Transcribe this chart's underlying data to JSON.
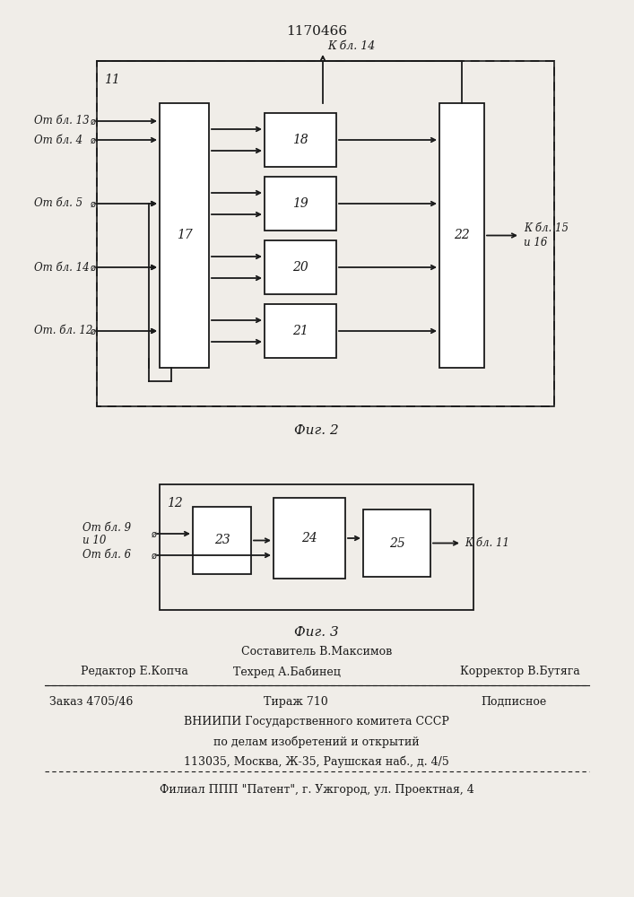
{
  "title": "1170466",
  "fig2_label": "Фиг. 2",
  "fig3_label": "Фиг. 3",
  "bg_color": "#f0ede8",
  "line_color": "#1a1a1a",
  "footer": {
    "composer": "Составитель В.Максимов",
    "editor": "Редактор Е.Копча",
    "techr": "Техред А.Бабинец",
    "corrector": "Корректор В.Бутяга",
    "order": "Заказ 4705/46",
    "tirazh": "Тираж 710",
    "podpisnoe": "Подписное",
    "vnipi": "ВНИИПИ Государственного комитета СССР",
    "po_delam": "по делам изобретений и открытий",
    "address": "113035, Москва, Ж-35, Раушская наб., д. 4/5",
    "filial": "Филиал ППП \"Патент\", г. Ужгород, ул. Проектная, 4"
  }
}
